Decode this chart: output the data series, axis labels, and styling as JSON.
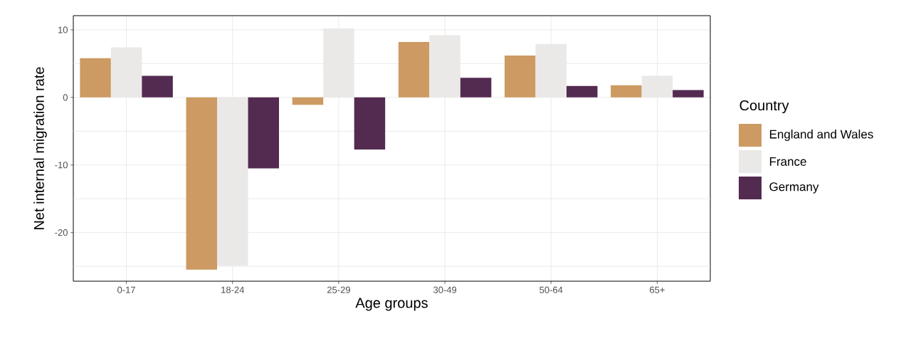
{
  "chart_data": {
    "type": "bar",
    "xlabel": "Age groups",
    "ylabel": "Net internal migration rate",
    "legend_title": "Country",
    "categories": [
      "0-17",
      "18-24",
      "25-29",
      "30-49",
      "50-64",
      "65+"
    ],
    "series": [
      {
        "name": "England and Wales",
        "color": "#cc9a62",
        "values": [
          5.8,
          -25.5,
          -1.1,
          8.2,
          6.2,
          1.8
        ]
      },
      {
        "name": "France",
        "color": "#ebe9e8",
        "values": [
          7.4,
          -24.9,
          10.2,
          9.2,
          7.9,
          3.2
        ]
      },
      {
        "name": "Germany",
        "color": "#532b50",
        "values": [
          3.2,
          -10.5,
          -7.7,
          2.9,
          1.7,
          1.1
        ]
      }
    ],
    "ylim": [
      -27.2,
      12.1
    ],
    "yticks": [
      {
        "value": -25,
        "label": null
      },
      -20,
      {
        "value": -15,
        "label": null
      },
      -10,
      {
        "value": -5,
        "label": null
      },
      0,
      {
        "value": 5,
        "label": null
      },
      10
    ],
    "grid": true,
    "legend": "right"
  }
}
